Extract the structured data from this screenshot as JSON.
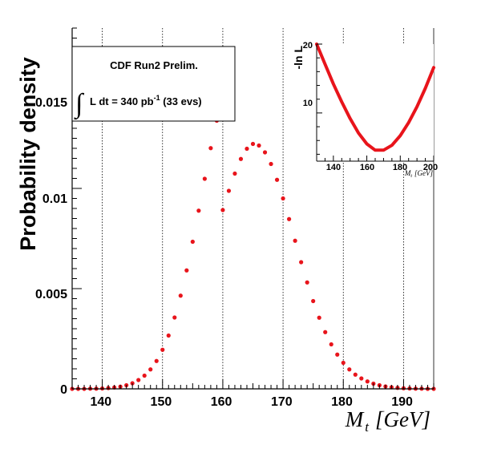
{
  "chart_data": [
    {
      "type": "scatter",
      "title": "",
      "xlabel": "M",
      "xlabel_subscript": "t",
      "xlabel_unit": "[GeV]",
      "ylabel": "Probability density",
      "xlim": [
        135,
        195
      ],
      "ylim": [
        0,
        0.018
      ],
      "xticks": [
        "140",
        "150",
        "160",
        "170",
        "180",
        "190"
      ],
      "yticks": [
        "0",
        "0.005",
        "0.01",
        "0.015"
      ],
      "vertical_dashed_lines_at": [
        140,
        150,
        160,
        170,
        180,
        190
      ],
      "marker_color": "#e8141b",
      "annotation": {
        "line1": "CDF Run2 Prelim.",
        "line2_integral": "∫",
        "line2_main": "L dt = 340 pb",
        "line2_exp": "-1",
        "line2_tail": " (33 evs)"
      },
      "series": [
        {
          "name": "Probability density",
          "x": [
            135,
            136,
            137,
            138,
            139,
            140,
            141,
            142,
            143,
            144,
            145,
            146,
            147,
            148,
            149,
            150,
            151,
            152,
            153,
            154,
            155,
            156,
            157,
            158,
            159,
            160,
            161,
            162,
            163,
            164,
            165,
            166,
            167,
            168,
            169,
            170,
            171,
            172,
            173,
            174,
            175,
            176,
            177,
            178,
            179,
            180,
            181,
            182,
            183,
            184,
            185,
            186,
            187,
            188,
            189,
            190,
            191,
            192,
            193,
            194,
            195
          ],
          "y": [
            0.0,
            0.0,
            0.0,
            1e-05,
            1e-05,
            2e-05,
            4e-05,
            7e-05,
            0.00011,
            0.00018,
            0.00028,
            0.00044,
            0.00066,
            0.00097,
            0.00139,
            0.00195,
            0.00266,
            0.00356,
            0.00465,
            0.00591,
            0.00734,
            0.00889,
            0.01048,
            0.01201,
            0.01338,
            0.00892,
            0.00988,
            0.01074,
            0.01147,
            0.01198,
            0.01222,
            0.01214,
            0.0118,
            0.01122,
            0.01043,
            0.0095,
            0.00847,
            0.00739,
            0.00632,
            0.00531,
            0.00438,
            0.00355,
            0.00283,
            0.00222,
            0.00171,
            0.0013,
            0.00097,
            0.00071,
            0.00052,
            0.00037,
            0.00026,
            0.00018,
            0.00012,
            8e-05,
            5e-05,
            3e-05,
            2e-05,
            1e-05,
            1e-05,
            0.0,
            0.0
          ]
        }
      ]
    },
    {
      "type": "line",
      "title": "",
      "xlabel": "M",
      "xlabel_subscript": "t",
      "xlabel_unit": "[GeV]",
      "ylabel": "-ln L",
      "xlim": [
        130,
        200
      ],
      "ylim": [
        3,
        20
      ],
      "xticks": [
        "140",
        "160",
        "180",
        "200"
      ],
      "yticks": [
        "10",
        "20"
      ],
      "line_color": "#e8141b",
      "series": [
        {
          "name": "-ln L",
          "x": [
            130,
            135,
            140,
            145,
            150,
            155,
            160,
            165,
            170,
            175,
            180,
            185,
            190,
            195,
            200
          ],
          "y": [
            20.0,
            17.1,
            14.2,
            11.6,
            9.2,
            7.1,
            5.5,
            4.6,
            4.6,
            5.3,
            6.7,
            8.6,
            10.9,
            13.6,
            16.6
          ]
        }
      ]
    }
  ]
}
